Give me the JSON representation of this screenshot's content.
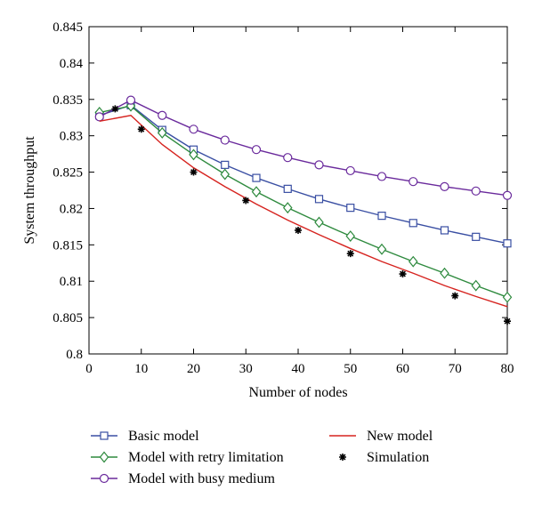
{
  "chart_data": {
    "type": "line",
    "title": "",
    "xlabel": "Number of nodes",
    "ylabel": "System throughput",
    "xlim": [
      0,
      80
    ],
    "ylim": [
      0.8,
      0.845
    ],
    "xticks": [
      0,
      10,
      20,
      30,
      40,
      50,
      60,
      70,
      80
    ],
    "yticks": [
      0.8,
      0.805,
      0.81,
      0.815,
      0.82,
      0.825,
      0.83,
      0.835,
      0.84,
      0.845
    ],
    "xtick_labels": [
      "0",
      "10",
      "20",
      "30",
      "40",
      "50",
      "60",
      "70",
      "80"
    ],
    "ytick_labels": [
      "0.8",
      "0.805",
      "0.81",
      "0.815",
      "0.82",
      "0.825",
      "0.83",
      "0.835",
      "0.84",
      "0.845"
    ],
    "grid": false,
    "legend_position": "bottom",
    "series": [
      {
        "name": "Basic model",
        "color": "#3a4fa3",
        "marker": "square",
        "line": true,
        "x": [
          2,
          8,
          14,
          20,
          26,
          32,
          38,
          44,
          50,
          56,
          62,
          68,
          74,
          80
        ],
        "y": [
          0.8328,
          0.8342,
          0.8308,
          0.8281,
          0.826,
          0.8242,
          0.8227,
          0.8213,
          0.8201,
          0.819,
          0.818,
          0.817,
          0.8161,
          0.8152
        ]
      },
      {
        "name": "Model with retry limitation",
        "color": "#2e8a3e",
        "marker": "diamond",
        "line": true,
        "x": [
          2,
          8,
          14,
          20,
          26,
          32,
          38,
          44,
          50,
          56,
          62,
          68,
          74,
          80
        ],
        "y": [
          0.8332,
          0.8341,
          0.8304,
          0.8274,
          0.8247,
          0.8223,
          0.8201,
          0.8181,
          0.8162,
          0.8144,
          0.8127,
          0.8111,
          0.8094,
          0.8078
        ]
      },
      {
        "name": "Model with busy medium",
        "color": "#6a2a9c",
        "marker": "circle",
        "line": true,
        "x": [
          2,
          8,
          14,
          20,
          26,
          32,
          38,
          44,
          50,
          56,
          62,
          68,
          74,
          80
        ],
        "y": [
          0.8326,
          0.8349,
          0.8328,
          0.8309,
          0.8294,
          0.8281,
          0.827,
          0.826,
          0.8252,
          0.8244,
          0.8237,
          0.823,
          0.8224,
          0.8218
        ]
      },
      {
        "name": "New model",
        "color": "#d6231f",
        "marker": "none",
        "line": true,
        "x": [
          2,
          8,
          14,
          20,
          26,
          32,
          38,
          44,
          50,
          56,
          62,
          68,
          74,
          80
        ],
        "y": [
          0.832,
          0.8328,
          0.8288,
          0.8256,
          0.823,
          0.8206,
          0.8184,
          0.8164,
          0.8145,
          0.8127,
          0.8111,
          0.8094,
          0.8079,
          0.8065
        ]
      },
      {
        "name": "Simulation",
        "color": "#000000",
        "marker": "star",
        "line": false,
        "x": [
          5,
          10,
          20,
          30,
          40,
          50,
          60,
          70,
          80
        ],
        "y": [
          0.8337,
          0.8309,
          0.825,
          0.8211,
          0.817,
          0.8138,
          0.811,
          0.808,
          0.8045
        ]
      }
    ]
  }
}
